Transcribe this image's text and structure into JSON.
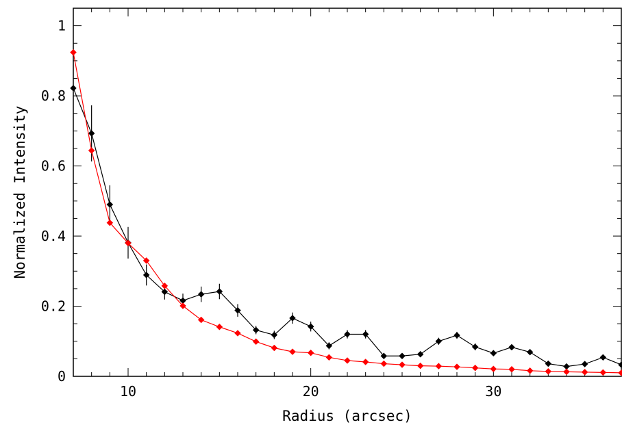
{
  "chart_data": {
    "type": "line",
    "title": "",
    "xlabel": "Radius (arcsec)",
    "ylabel": "Normalized Intensity",
    "xlim": [
      7,
      37
    ],
    "ylim": [
      0,
      1.05
    ],
    "x_ticks": [
      10,
      20,
      30
    ],
    "x_tick_labels": [
      "10",
      "20",
      "30"
    ],
    "y_ticks": [
      0,
      0.2,
      0.4,
      0.6,
      0.8,
      1
    ],
    "y_tick_labels": [
      "0",
      "0.2",
      "0.4",
      "0.6",
      "0.8",
      "1"
    ],
    "grid": false,
    "legend": "none",
    "series": [
      {
        "color": "#000000",
        "marker": "diamond",
        "x": [
          7,
          8,
          9,
          10,
          11,
          12,
          13,
          14,
          15,
          16,
          17,
          18,
          19,
          20,
          21,
          22,
          23,
          24,
          25,
          26,
          27,
          28,
          29,
          30,
          31,
          32,
          33,
          34,
          35,
          36,
          37
        ],
        "y": [
          0.822,
          0.693,
          0.49,
          0.381,
          0.289,
          0.241,
          0.216,
          0.234,
          0.242,
          0.188,
          0.132,
          0.118,
          0.166,
          0.142,
          0.087,
          0.12,
          0.12,
          0.058,
          0.058,
          0.063,
          0.1,
          0.117,
          0.084,
          0.066,
          0.083,
          0.069,
          0.036,
          0.028,
          0.035,
          0.054,
          0.033
        ],
        "yerr": [
          0.0,
          0.08,
          0.055,
          0.045,
          0.03,
          0.022,
          0.02,
          0.022,
          0.022,
          0.018,
          0.012,
          0.012,
          0.016,
          0.014,
          0.01,
          0.012,
          0.012,
          0.008,
          0.008,
          0.008,
          0.01,
          0.01,
          0.01,
          0.008,
          0.008,
          0.008,
          0.006,
          0.006,
          0.006,
          0.006,
          0.006
        ]
      },
      {
        "color": "#ff0000",
        "marker": "diamond",
        "x": [
          7,
          8,
          9,
          10,
          11,
          12,
          13,
          14,
          15,
          16,
          17,
          18,
          19,
          20,
          21,
          22,
          23,
          24,
          25,
          26,
          27,
          28,
          29,
          30,
          31,
          32,
          33,
          34,
          35,
          36,
          37
        ],
        "y": [
          0.924,
          0.644,
          0.438,
          0.38,
          0.33,
          0.258,
          0.201,
          0.161,
          0.141,
          0.123,
          0.099,
          0.081,
          0.07,
          0.067,
          0.054,
          0.045,
          0.041,
          0.036,
          0.033,
          0.03,
          0.029,
          0.027,
          0.024,
          0.021,
          0.02,
          0.016,
          0.014,
          0.013,
          0.012,
          0.011,
          0.01
        ]
      }
    ]
  }
}
